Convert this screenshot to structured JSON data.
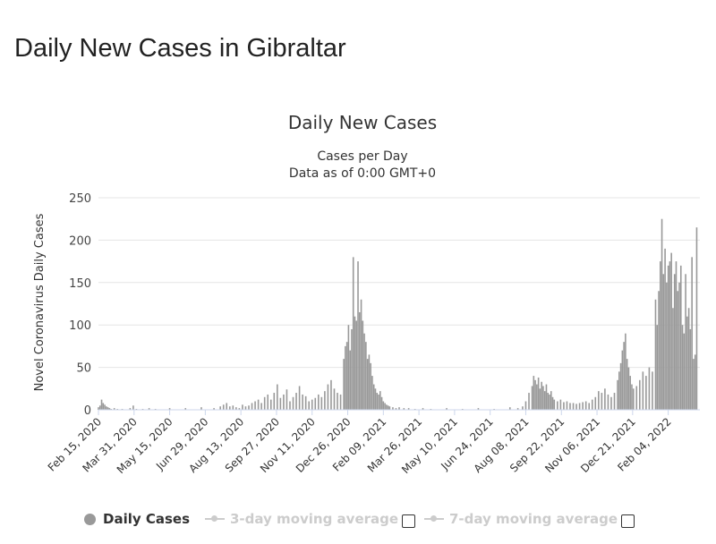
{
  "page": {
    "title": "Daily New Cases in Gibraltar"
  },
  "chart_data": {
    "type": "bar",
    "title": "Daily New Cases",
    "subtitle_1": "Cases per Day",
    "subtitle_2": "Data as of 0:00 GMT+0",
    "ylabel": "Novel Coronavirus Daily Cases",
    "xlabel": "",
    "ylim": [
      0,
      250
    ],
    "yticks": [
      0,
      50,
      100,
      150,
      200,
      250
    ],
    "grid": true,
    "x_tick_labels": [
      "Feb 15, 2020",
      "Mar 31, 2020",
      "May 15, 2020",
      "Jun 29, 2020",
      "Aug 13, 2020",
      "Sep 27, 2020",
      "Nov 11, 2020",
      "Dec 26, 2020",
      "Feb 09, 2021",
      "Mar 26, 2021",
      "May 10, 2021",
      "Jun 24, 2021",
      "Aug 08, 2021",
      "Sep 22, 2021",
      "Nov 06, 2021",
      "Dec 21, 2021",
      "Feb 04, 2022"
    ],
    "color": "#999999",
    "series": [
      {
        "name": "Daily Cases",
        "values": [
          [
            0,
            3
          ],
          [
            2,
            5
          ],
          [
            4,
            12
          ],
          [
            6,
            8
          ],
          [
            8,
            6
          ],
          [
            10,
            4
          ],
          [
            12,
            3
          ],
          [
            14,
            2
          ],
          [
            16,
            1
          ],
          [
            20,
            2
          ],
          [
            24,
            1
          ],
          [
            30,
            1
          ],
          [
            40,
            2
          ],
          [
            44,
            5
          ],
          [
            48,
            1
          ],
          [
            56,
            1
          ],
          [
            64,
            2
          ],
          [
            72,
            1
          ],
          [
            90,
            2
          ],
          [
            110,
            2
          ],
          [
            130,
            3
          ],
          [
            146,
            2
          ],
          [
            154,
            4
          ],
          [
            158,
            6
          ],
          [
            162,
            8
          ],
          [
            166,
            4
          ],
          [
            170,
            5
          ],
          [
            174,
            3
          ],
          [
            178,
            2
          ],
          [
            182,
            6
          ],
          [
            186,
            4
          ],
          [
            190,
            5
          ],
          [
            194,
            8
          ],
          [
            198,
            10
          ],
          [
            202,
            12
          ],
          [
            206,
            8
          ],
          [
            210,
            15
          ],
          [
            214,
            18
          ],
          [
            218,
            12
          ],
          [
            222,
            20
          ],
          [
            226,
            30
          ],
          [
            230,
            14
          ],
          [
            234,
            18
          ],
          [
            238,
            24
          ],
          [
            242,
            10
          ],
          [
            246,
            15
          ],
          [
            250,
            20
          ],
          [
            254,
            28
          ],
          [
            258,
            18
          ],
          [
            262,
            16
          ],
          [
            266,
            10
          ],
          [
            270,
            12
          ],
          [
            274,
            14
          ],
          [
            278,
            18
          ],
          [
            282,
            15
          ],
          [
            286,
            22
          ],
          [
            290,
            30
          ],
          [
            294,
            35
          ],
          [
            298,
            25
          ],
          [
            302,
            20
          ],
          [
            306,
            18
          ],
          [
            310,
            60
          ],
          [
            312,
            75
          ],
          [
            314,
            80
          ],
          [
            316,
            100
          ],
          [
            318,
            70
          ],
          [
            320,
            95
          ],
          [
            322,
            180
          ],
          [
            324,
            110
          ],
          [
            326,
            105
          ],
          [
            328,
            175
          ],
          [
            330,
            115
          ],
          [
            332,
            130
          ],
          [
            334,
            105
          ],
          [
            336,
            90
          ],
          [
            338,
            80
          ],
          [
            340,
            60
          ],
          [
            342,
            65
          ],
          [
            344,
            55
          ],
          [
            346,
            40
          ],
          [
            348,
            30
          ],
          [
            350,
            25
          ],
          [
            352,
            20
          ],
          [
            354,
            18
          ],
          [
            356,
            22
          ],
          [
            358,
            15
          ],
          [
            360,
            10
          ],
          [
            362,
            8
          ],
          [
            364,
            6
          ],
          [
            366,
            5
          ],
          [
            368,
            4
          ],
          [
            372,
            3
          ],
          [
            376,
            2
          ],
          [
            380,
            3
          ],
          [
            386,
            2
          ],
          [
            392,
            2
          ],
          [
            400,
            1
          ],
          [
            410,
            2
          ],
          [
            420,
            1
          ],
          [
            440,
            2
          ],
          [
            460,
            1
          ],
          [
            480,
            2
          ],
          [
            500,
            1
          ],
          [
            520,
            3
          ],
          [
            530,
            2
          ],
          [
            536,
            4
          ],
          [
            540,
            10
          ],
          [
            544,
            20
          ],
          [
            548,
            28
          ],
          [
            550,
            40
          ],
          [
            552,
            35
          ],
          [
            554,
            30
          ],
          [
            556,
            38
          ],
          [
            558,
            25
          ],
          [
            560,
            33
          ],
          [
            562,
            28
          ],
          [
            564,
            22
          ],
          [
            566,
            30
          ],
          [
            568,
            20
          ],
          [
            570,
            18
          ],
          [
            572,
            22
          ],
          [
            574,
            15
          ],
          [
            576,
            12
          ],
          [
            580,
            10
          ],
          [
            584,
            12
          ],
          [
            588,
            9
          ],
          [
            592,
            10
          ],
          [
            596,
            8
          ],
          [
            600,
            8
          ],
          [
            604,
            7
          ],
          [
            608,
            8
          ],
          [
            612,
            9
          ],
          [
            616,
            10
          ],
          [
            620,
            8
          ],
          [
            624,
            12
          ],
          [
            628,
            15
          ],
          [
            632,
            22
          ],
          [
            636,
            20
          ],
          [
            640,
            25
          ],
          [
            644,
            18
          ],
          [
            648,
            15
          ],
          [
            652,
            20
          ],
          [
            656,
            35
          ],
          [
            658,
            45
          ],
          [
            660,
            55
          ],
          [
            662,
            70
          ],
          [
            664,
            80
          ],
          [
            666,
            90
          ],
          [
            668,
            60
          ],
          [
            670,
            50
          ],
          [
            672,
            40
          ],
          [
            674,
            30
          ],
          [
            676,
            25
          ],
          [
            680,
            28
          ],
          [
            684,
            35
          ],
          [
            688,
            45
          ],
          [
            692,
            40
          ],
          [
            696,
            50
          ],
          [
            700,
            45
          ],
          [
            704,
            130
          ],
          [
            706,
            100
          ],
          [
            708,
            140
          ],
          [
            710,
            175
          ],
          [
            712,
            225
          ],
          [
            714,
            160
          ],
          [
            716,
            190
          ],
          [
            718,
            150
          ],
          [
            720,
            170
          ],
          [
            722,
            175
          ],
          [
            724,
            185
          ],
          [
            726,
            120
          ],
          [
            728,
            160
          ],
          [
            730,
            175
          ],
          [
            732,
            140
          ],
          [
            734,
            150
          ],
          [
            736,
            170
          ],
          [
            738,
            100
          ],
          [
            740,
            90
          ],
          [
            742,
            160
          ],
          [
            744,
            110
          ],
          [
            746,
            120
          ],
          [
            748,
            95
          ],
          [
            750,
            180
          ],
          [
            752,
            60
          ],
          [
            754,
            65
          ],
          [
            756,
            215
          ]
        ]
      }
    ],
    "legend": [
      {
        "label": "Daily Cases",
        "active": true
      },
      {
        "label": "3-day moving average",
        "active": false
      },
      {
        "label": "7-day moving average",
        "active": false
      }
    ],
    "legend_position": "bottom"
  }
}
